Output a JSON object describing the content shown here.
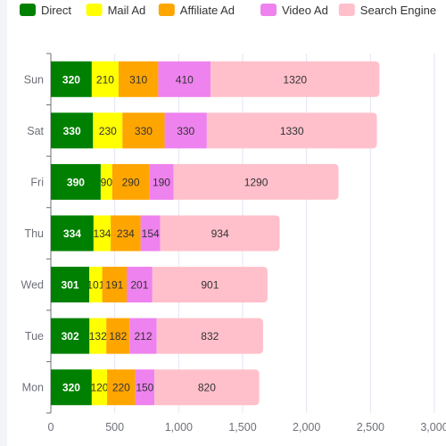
{
  "chart_data": {
    "type": "bar",
    "orientation": "horizontal",
    "stacked": true,
    "title": "",
    "xlabel": "",
    "ylabel": "",
    "categories": [
      "Mon",
      "Tue",
      "Wed",
      "Thu",
      "Fri",
      "Sat",
      "Sun"
    ],
    "series": [
      {
        "name": "Direct",
        "color": "#008000",
        "label_color": "#ffffff",
        "label_bold": true,
        "values": [
          320,
          302,
          301,
          334,
          390,
          330,
          320
        ]
      },
      {
        "name": "Mail Ad",
        "color": "#ffff00",
        "label_color": "#333333",
        "label_bold": false,
        "values": [
          120,
          132,
          101,
          134,
          90,
          230,
          210
        ]
      },
      {
        "name": "Affiliate Ad",
        "color": "#ffa500",
        "label_color": "#333333",
        "label_bold": false,
        "values": [
          220,
          182,
          191,
          234,
          290,
          330,
          310
        ]
      },
      {
        "name": "Video Ad",
        "color": "#ee82ee",
        "label_color": "#333333",
        "label_bold": false,
        "values": [
          150,
          212,
          201,
          154,
          190,
          330,
          410
        ]
      },
      {
        "name": "Search Engine",
        "color": "#ffc0cb",
        "label_color": "#333333",
        "label_bold": false,
        "values": [
          820,
          832,
          901,
          934,
          1290,
          1330,
          1320
        ]
      }
    ],
    "xlim": [
      0,
      3000
    ],
    "x_ticks": [
      0,
      500,
      1000,
      1500,
      2000,
      2500,
      3000
    ],
    "x_tick_labels": [
      "0",
      "500",
      "1,000",
      "1,500",
      "2,000",
      "2,500",
      "3,000"
    ],
    "grid": true,
    "legend_position": "top",
    "data_labels": true
  }
}
